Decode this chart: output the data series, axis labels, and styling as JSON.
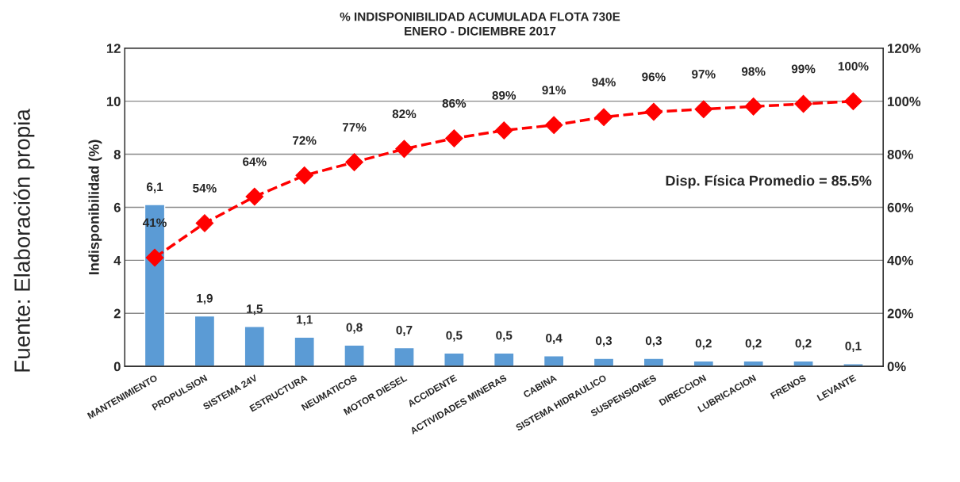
{
  "chart_data": {
    "type": "bar",
    "title": "% INDISPONIBILIDAD ACUMULADA FLOTA 730E",
    "subtitle": "ENERO - DICIEMBRE 2017",
    "ylabel": "Indisponibilidad (%)",
    "categories": [
      "MANTENIMIENTO",
      "PROPULSION",
      "SISTEMA 24V",
      "ESTRUCTURA",
      "NEUMATICOS",
      "MOTOR DIESEL",
      "ACCIDENTE",
      "ACTIVIDADES MINERAS",
      "CABINA",
      "SISTEMA HIDRAULICO",
      "SUSPENSIONES",
      "DIRECCION",
      "LUBRICACION",
      "FRENOS",
      "LEVANTE"
    ],
    "series": [
      {
        "color": "#5b9bd5",
        "values": [
          6.1,
          1.9,
          1.5,
          1.1,
          0.8,
          0.7,
          0.5,
          0.5,
          0.4,
          0.3,
          0.3,
          0.2,
          0.2,
          0.2,
          0.1
        ],
        "value_labels": [
          "6,1",
          "1,9",
          "1,5",
          "1,1",
          "0,8",
          "0,7",
          "0,5",
          "0,5",
          "0,4",
          "0,3",
          "0,3",
          "0,2",
          "0,2",
          "0,2",
          "0,1"
        ]
      },
      {
        "type": "line",
        "axis": "y2",
        "color": "#ff0000",
        "marker": "diamond",
        "line_style": "dashed",
        "values": [
          41,
          54,
          64,
          72,
          77,
          82,
          86,
          89,
          91,
          94,
          96,
          97,
          98,
          99,
          100
        ],
        "value_labels": [
          "41%",
          "54%",
          "64%",
          "72%",
          "77%",
          "82%",
          "86%",
          "89%",
          "91%",
          "94%",
          "96%",
          "97%",
          "98%",
          "99%",
          "100%"
        ]
      }
    ],
    "ylim": [
      0,
      12
    ],
    "yticks": [
      0,
      2,
      4,
      6,
      8,
      10,
      12
    ],
    "y2lim": [
      0,
      120
    ],
    "y2ticks": [
      {
        "value": 0,
        "label": "0%"
      },
      {
        "value": 20,
        "label": "20%"
      },
      {
        "value": 40,
        "label": "40%"
      },
      {
        "value": 60,
        "label": "60%"
      },
      {
        "value": 80,
        "label": "80%"
      },
      {
        "value": 100,
        "label": "100%"
      },
      {
        "value": 120,
        "label": "120%"
      }
    ],
    "grid": "y",
    "annotations": [
      "Disp. Física Promedio = 85.5%",
      "Fuente: Elaboración propia"
    ]
  }
}
